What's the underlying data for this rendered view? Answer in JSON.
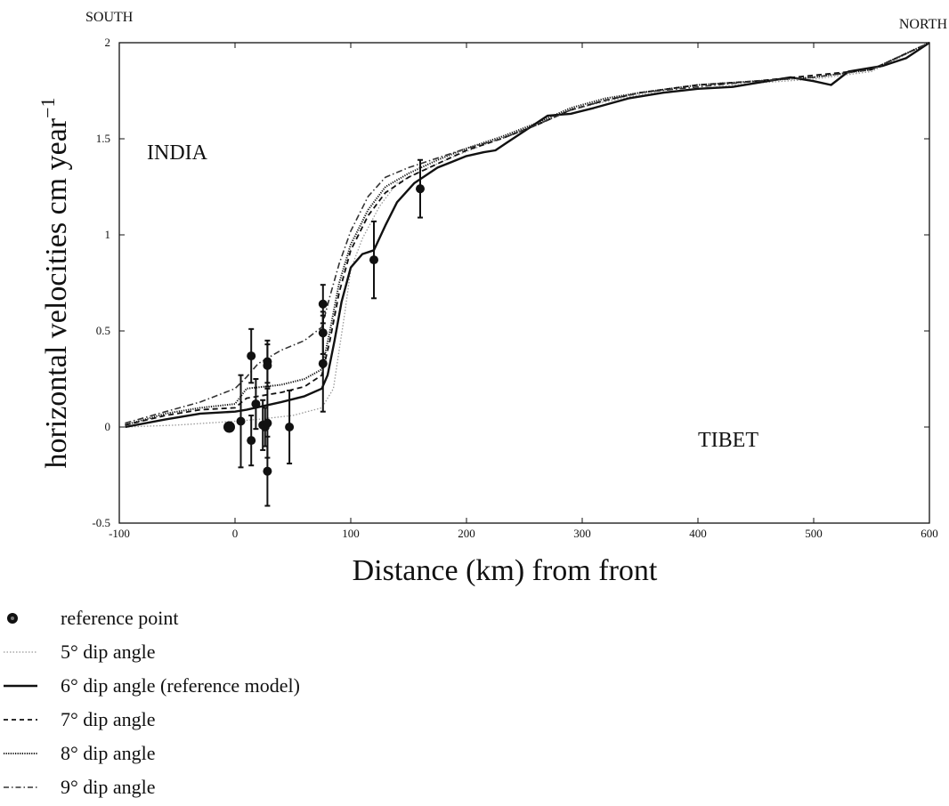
{
  "corner_labels": {
    "left": "SOUTH",
    "right": "NORTH"
  },
  "chart_data": {
    "type": "line",
    "xlabel": "Distance (km) from front",
    "ylabel": "horizontal velocities cm year",
    "ylabel_superscript": "−1",
    "xlim": [
      -100,
      600
    ],
    "ylim": [
      -0.5,
      2
    ],
    "xticks": [
      -100,
      0,
      100,
      200,
      300,
      400,
      500,
      600
    ],
    "yticks": [
      -0.5,
      0,
      0.5,
      1,
      1.5,
      2
    ],
    "xtick_labels": [
      "-100",
      "0",
      "100",
      "200",
      "300",
      "400",
      "500",
      "600"
    ],
    "ytick_labels": [
      "-0.5",
      "0",
      "0.5",
      "1",
      "1.5",
      "2"
    ],
    "annotations": [
      "INDIA",
      "TIBET"
    ],
    "grid": false,
    "legend_position": "bottom-left, below plot",
    "series": [
      {
        "name": "5° dip angle",
        "style": "dotted-light",
        "points": [
          [
            -95,
            0.0
          ],
          [
            -50,
            0.01
          ],
          [
            0,
            0.03
          ],
          [
            20,
            0.04
          ],
          [
            50,
            0.06
          ],
          [
            75,
            0.1
          ],
          [
            85,
            0.2
          ],
          [
            90,
            0.4
          ],
          [
            95,
            0.6
          ],
          [
            100,
            0.82
          ],
          [
            110,
            0.98
          ],
          [
            125,
            1.15
          ],
          [
            140,
            1.27
          ],
          [
            160,
            1.33
          ],
          [
            190,
            1.41
          ],
          [
            220,
            1.48
          ],
          [
            250,
            1.55
          ],
          [
            280,
            1.63
          ],
          [
            310,
            1.68
          ],
          [
            350,
            1.73
          ],
          [
            400,
            1.76
          ],
          [
            450,
            1.79
          ],
          [
            500,
            1.81
          ],
          [
            550,
            1.85
          ],
          [
            600,
            2.0
          ]
        ]
      },
      {
        "name": "6° dip angle (reference model)",
        "style": "solid",
        "points": [
          [
            -95,
            0.0
          ],
          [
            -60,
            0.04
          ],
          [
            -30,
            0.07
          ],
          [
            0,
            0.08
          ],
          [
            10,
            0.09
          ],
          [
            40,
            0.13
          ],
          [
            60,
            0.16
          ],
          [
            75,
            0.2
          ],
          [
            80,
            0.27
          ],
          [
            86,
            0.45
          ],
          [
            92,
            0.65
          ],
          [
            100,
            0.83
          ],
          [
            110,
            0.9
          ],
          [
            120,
            0.92
          ],
          [
            130,
            1.05
          ],
          [
            140,
            1.17
          ],
          [
            155,
            1.27
          ],
          [
            175,
            1.35
          ],
          [
            200,
            1.41
          ],
          [
            215,
            1.43
          ],
          [
            225,
            1.44
          ],
          [
            235,
            1.48
          ],
          [
            250,
            1.54
          ],
          [
            270,
            1.62
          ],
          [
            290,
            1.63
          ],
          [
            310,
            1.66
          ],
          [
            340,
            1.71
          ],
          [
            370,
            1.74
          ],
          [
            400,
            1.76
          ],
          [
            430,
            1.77
          ],
          [
            460,
            1.8
          ],
          [
            480,
            1.82
          ],
          [
            500,
            1.8
          ],
          [
            515,
            1.78
          ],
          [
            530,
            1.85
          ],
          [
            560,
            1.88
          ],
          [
            580,
            1.92
          ],
          [
            600,
            2.0
          ]
        ]
      },
      {
        "name": "7° dip angle",
        "style": "dashed",
        "points": [
          [
            -95,
            0.01
          ],
          [
            -60,
            0.06
          ],
          [
            -30,
            0.09
          ],
          [
            0,
            0.1
          ],
          [
            10,
            0.15
          ],
          [
            40,
            0.18
          ],
          [
            60,
            0.21
          ],
          [
            75,
            0.27
          ],
          [
            82,
            0.45
          ],
          [
            90,
            0.7
          ],
          [
            100,
            0.92
          ],
          [
            115,
            1.1
          ],
          [
            130,
            1.22
          ],
          [
            150,
            1.3
          ],
          [
            175,
            1.37
          ],
          [
            200,
            1.44
          ],
          [
            230,
            1.5
          ],
          [
            260,
            1.57
          ],
          [
            290,
            1.65
          ],
          [
            320,
            1.7
          ],
          [
            350,
            1.74
          ],
          [
            400,
            1.78
          ],
          [
            450,
            1.8
          ],
          [
            500,
            1.83
          ],
          [
            550,
            1.86
          ],
          [
            600,
            2.0
          ]
        ]
      },
      {
        "name": "8° dip angle",
        "style": "dense-dotted",
        "points": [
          [
            -95,
            0.01
          ],
          [
            -60,
            0.07
          ],
          [
            -30,
            0.1
          ],
          [
            0,
            0.12
          ],
          [
            10,
            0.2
          ],
          [
            40,
            0.22
          ],
          [
            60,
            0.25
          ],
          [
            75,
            0.3
          ],
          [
            82,
            0.5
          ],
          [
            90,
            0.75
          ],
          [
            100,
            0.95
          ],
          [
            115,
            1.13
          ],
          [
            130,
            1.25
          ],
          [
            150,
            1.32
          ],
          [
            175,
            1.39
          ],
          [
            200,
            1.45
          ],
          [
            230,
            1.51
          ],
          [
            260,
            1.58
          ],
          [
            290,
            1.66
          ],
          [
            320,
            1.71
          ],
          [
            350,
            1.74
          ],
          [
            400,
            1.78
          ],
          [
            450,
            1.8
          ],
          [
            500,
            1.82
          ],
          [
            550,
            1.86
          ],
          [
            600,
            2.0
          ]
        ]
      },
      {
        "name": "9° dip angle",
        "style": "dash-dot",
        "points": [
          [
            -95,
            0.02
          ],
          [
            -60,
            0.08
          ],
          [
            -30,
            0.13
          ],
          [
            0,
            0.2
          ],
          [
            10,
            0.26
          ],
          [
            20,
            0.33
          ],
          [
            40,
            0.4
          ],
          [
            60,
            0.45
          ],
          [
            75,
            0.52
          ],
          [
            82,
            0.68
          ],
          [
            90,
            0.85
          ],
          [
            100,
            1.02
          ],
          [
            115,
            1.2
          ],
          [
            130,
            1.3
          ],
          [
            150,
            1.35
          ],
          [
            175,
            1.4
          ],
          [
            200,
            1.45
          ],
          [
            230,
            1.5
          ],
          [
            260,
            1.57
          ],
          [
            290,
            1.65
          ],
          [
            320,
            1.7
          ],
          [
            350,
            1.74
          ],
          [
            400,
            1.77
          ],
          [
            450,
            1.8
          ],
          [
            500,
            1.82
          ],
          [
            550,
            1.86
          ],
          [
            600,
            2.0
          ]
        ]
      }
    ],
    "observations": {
      "name": "reference point",
      "points": [
        {
          "x": -5,
          "y": 0.0,
          "err": 0.0,
          "reference": true
        },
        {
          "x": 5,
          "y": 0.03,
          "err": 0.24
        },
        {
          "x": 14,
          "y": 0.37,
          "err": 0.14
        },
        {
          "x": 14,
          "y": -0.07,
          "err": 0.13
        },
        {
          "x": 18,
          "y": 0.12,
          "err": 0.13
        },
        {
          "x": 24,
          "y": 0.01,
          "err": 0.13
        },
        {
          "x": 26,
          "y": 0.0,
          "err": 0.1
        },
        {
          "x": 28,
          "y": 0.34,
          "err": 0.11
        },
        {
          "x": 28,
          "y": 0.32,
          "err": 0.11
        },
        {
          "x": 28,
          "y": 0.02,
          "err": 0.18
        },
        {
          "x": 28,
          "y": -0.23,
          "err": 0.18
        },
        {
          "x": 47,
          "y": 0.0,
          "err": 0.19
        },
        {
          "x": 76,
          "y": 0.64,
          "err": 0.1
        },
        {
          "x": 76,
          "y": 0.49,
          "err": 0.11
        },
        {
          "x": 76,
          "y": 0.33,
          "err": 0.25
        },
        {
          "x": 120,
          "y": 0.87,
          "err": 0.2
        },
        {
          "x": 160,
          "y": 1.24,
          "err": 0.15
        }
      ]
    }
  },
  "legend": [
    {
      "label": "reference point",
      "symbol": "dot-icon"
    },
    {
      "label": "5° dip angle",
      "symbol": "dotted-light"
    },
    {
      "label": "6° dip angle (reference model)",
      "symbol": "solid"
    },
    {
      "label": "7° dip angle",
      "symbol": "dashed"
    },
    {
      "label": "8° dip angle",
      "symbol": "dense-dotted"
    },
    {
      "label": "9° dip angle",
      "symbol": "dash-dot"
    }
  ]
}
